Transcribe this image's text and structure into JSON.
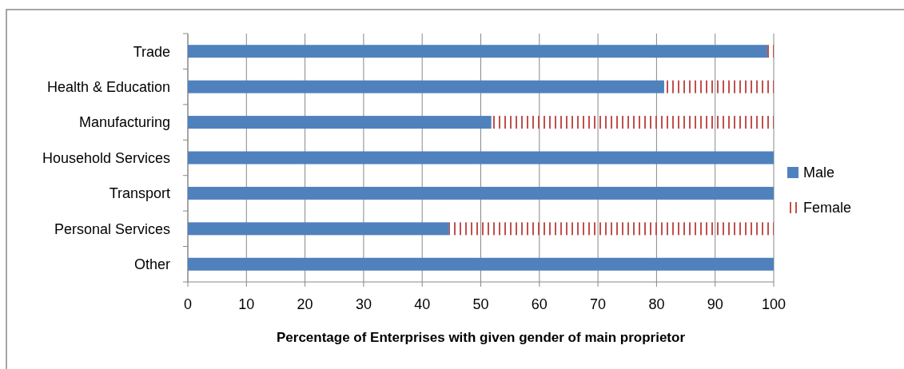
{
  "chart_data": {
    "type": "bar",
    "orientation": "horizontal",
    "stacked": true,
    "categories": [
      "Trade",
      "Health & Education",
      "Manufacturing",
      "Household Services",
      "Transport",
      "Personal Services",
      "Other"
    ],
    "series": [
      {
        "name": "Male",
        "color": "#4f81bd",
        "values": [
          98.9,
          81.3,
          51.8,
          100,
          100,
          44.6,
          100
        ]
      },
      {
        "name": "Female",
        "color": "#c0504d",
        "values": [
          1.1,
          18.7,
          48.2,
          0,
          0,
          55.4,
          0
        ]
      }
    ],
    "xlim": [
      0,
      100
    ],
    "xticks": [
      0,
      10,
      20,
      30,
      40,
      50,
      60,
      70,
      80,
      90,
      100
    ],
    "xlabel": "Percentage of Enterprises with given gender of main proprietor",
    "grid": "x",
    "legend": "right"
  }
}
